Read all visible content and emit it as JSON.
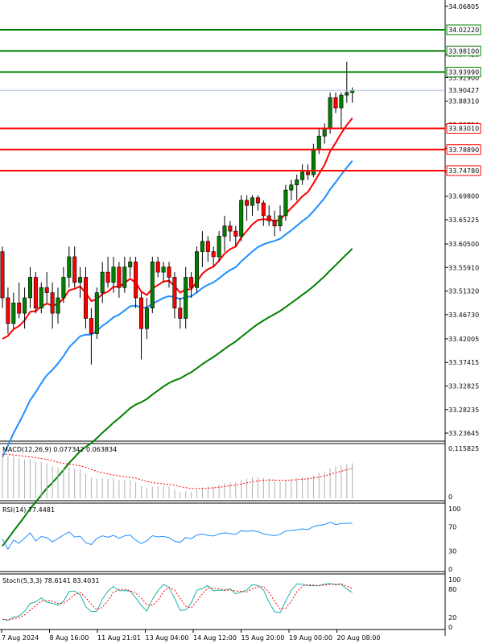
{
  "chart_data": {
    "type": "candlestick",
    "price_axis": {
      "ylim": [
        33.2255,
        34.074
      ],
      "tick_labels": [
        "34.06805",
        "33.97420",
        "33.92900",
        "33.88310",
        "33.83720",
        "33.79130",
        "33.74540",
        "33.69800",
        "33.65225",
        "33.60500",
        "33.55910",
        "33.51320",
        "33.46730",
        "33.42005",
        "33.37415",
        "33.32825",
        "33.28235",
        "33.23645"
      ],
      "tick_values": [
        34.06805,
        33.9742,
        33.929,
        33.8831,
        33.8372,
        33.7913,
        33.7454,
        33.698,
        33.65225,
        33.605,
        33.5591,
        33.5132,
        33.4673,
        33.42005,
        33.37415,
        33.32825,
        33.28235,
        33.23645
      ],
      "current_price": "33.90427",
      "current_value": 33.90427
    },
    "levels": {
      "resistance": [
        {
          "label": "34.02220",
          "value": 34.0222
        },
        {
          "label": "33.98100",
          "value": 33.981
        },
        {
          "label": "33.93990",
          "value": 33.9399
        }
      ],
      "support": [
        {
          "label": "33.83010",
          "value": 33.8301
        },
        {
          "label": "33.78890",
          "value": 33.7889
        },
        {
          "label": "33.74780",
          "value": 33.7478
        }
      ],
      "resistance_color": "#008000",
      "support_color": "#ff0000"
    },
    "x_labels": [
      "7 Aug 2024",
      "8 Aug 16:00",
      "11 Aug 21:01",
      "13 Aug 04:00",
      "14 Aug 12:00",
      "15 Aug 20:00",
      "19 Aug 00:00",
      "20 Aug 08:00"
    ],
    "candles": [
      [
        33.59,
        33.6,
        33.48,
        33.5
      ],
      [
        33.5,
        33.52,
        33.43,
        33.45
      ],
      [
        33.45,
        33.51,
        33.44,
        33.49
      ],
      [
        33.49,
        33.53,
        33.46,
        33.47
      ],
      [
        33.47,
        33.52,
        33.44,
        33.5
      ],
      [
        33.5,
        33.56,
        33.48,
        33.54
      ],
      [
        33.54,
        33.55,
        33.47,
        33.48
      ],
      [
        33.48,
        33.53,
        33.47,
        33.52
      ],
      [
        33.52,
        33.55,
        33.49,
        33.51
      ],
      [
        33.51,
        33.53,
        33.44,
        33.47
      ],
      [
        33.47,
        33.52,
        33.45,
        33.5
      ],
      [
        33.5,
        33.56,
        33.49,
        33.54
      ],
      [
        33.54,
        33.6,
        33.52,
        33.58
      ],
      [
        33.58,
        33.6,
        33.52,
        33.53
      ],
      [
        33.53,
        33.56,
        33.5,
        33.54
      ],
      [
        33.54,
        33.56,
        33.44,
        33.46
      ],
      [
        33.46,
        33.48,
        33.37,
        33.43
      ],
      [
        33.43,
        33.52,
        33.42,
        33.51
      ],
      [
        33.51,
        33.57,
        33.49,
        33.55
      ],
      [
        33.55,
        33.58,
        33.52,
        33.53
      ],
      [
        33.53,
        33.58,
        33.51,
        33.56
      ],
      [
        33.56,
        33.57,
        33.5,
        33.52
      ],
      [
        33.52,
        33.58,
        33.51,
        33.56
      ],
      [
        33.56,
        33.58,
        33.54,
        33.57
      ],
      [
        33.57,
        33.58,
        33.48,
        33.5
      ],
      [
        33.5,
        33.51,
        33.38,
        33.44
      ],
      [
        33.44,
        33.5,
        33.42,
        33.48
      ],
      [
        33.48,
        33.58,
        33.47,
        33.57
      ],
      [
        33.57,
        33.58,
        33.54,
        33.55
      ],
      [
        33.55,
        33.57,
        33.53,
        33.56
      ],
      [
        33.56,
        33.57,
        33.52,
        33.54
      ],
      [
        33.54,
        33.55,
        33.46,
        33.48
      ],
      [
        33.48,
        33.5,
        33.44,
        33.46
      ],
      [
        33.46,
        33.56,
        33.44,
        33.54
      ],
      [
        33.54,
        33.55,
        33.5,
        33.52
      ],
      [
        33.52,
        33.6,
        33.51,
        33.59
      ],
      [
        33.59,
        33.63,
        33.56,
        33.61
      ],
      [
        33.61,
        33.62,
        33.57,
        33.59
      ],
      [
        33.59,
        33.6,
        33.56,
        33.58
      ],
      [
        33.58,
        33.63,
        33.57,
        33.62
      ],
      [
        33.62,
        33.66,
        33.59,
        33.64
      ],
      [
        33.64,
        33.65,
        33.61,
        33.63
      ],
      [
        33.63,
        33.64,
        33.6,
        33.62
      ],
      [
        33.62,
        33.7,
        33.61,
        33.69
      ],
      [
        33.69,
        33.7,
        33.65,
        33.68
      ],
      [
        33.68,
        33.7,
        33.66,
        33.695
      ],
      [
        33.695,
        33.7,
        33.67,
        33.685
      ],
      [
        33.685,
        33.69,
        33.64,
        33.66
      ],
      [
        33.66,
        33.68,
        33.64,
        33.65
      ],
      [
        33.65,
        33.67,
        33.62,
        33.64
      ],
      [
        33.64,
        33.68,
        33.63,
        33.66
      ],
      [
        33.66,
        33.72,
        33.65,
        33.71
      ],
      [
        33.71,
        33.73,
        33.69,
        33.72
      ],
      [
        33.72,
        33.74,
        33.69,
        33.73
      ],
      [
        33.73,
        33.76,
        33.72,
        33.745
      ],
      [
        33.745,
        33.76,
        33.73,
        33.74
      ],
      [
        33.74,
        33.8,
        33.735,
        33.79
      ],
      [
        33.79,
        33.83,
        33.78,
        33.815
      ],
      [
        33.815,
        33.84,
        33.8,
        33.83
      ],
      [
        33.83,
        33.9,
        33.82,
        33.89
      ],
      [
        33.89,
        33.9,
        33.86,
        33.87
      ],
      [
        33.87,
        33.9,
        33.83,
        33.895
      ],
      [
        33.895,
        33.96,
        33.88,
        33.9
      ],
      [
        33.9,
        33.91,
        33.88,
        33.904
      ]
    ],
    "ma_fast_color": "#ff0000",
    "ma_mid_color": "#1f8fff",
    "ma_slow_color": "#008000",
    "bull_color": "#008000",
    "bear_color": "#ff0000",
    "macd": {
      "title": "MACD(12,26,9) 0.077342 0.063834",
      "tick_label": "0.115825",
      "zero_label": "0"
    },
    "rsi": {
      "title": "RSI(14) 77.4481",
      "tick_labels": [
        "100",
        "70",
        "30",
        "0"
      ],
      "tick_values": [
        100,
        70,
        30,
        0
      ]
    },
    "stoch": {
      "title": "Stoch(5,3,3) 78.6141 83.4031",
      "tick_labels": [
        "100",
        "80",
        "20",
        "0"
      ],
      "tick_values": [
        100,
        80,
        20,
        0
      ]
    }
  }
}
